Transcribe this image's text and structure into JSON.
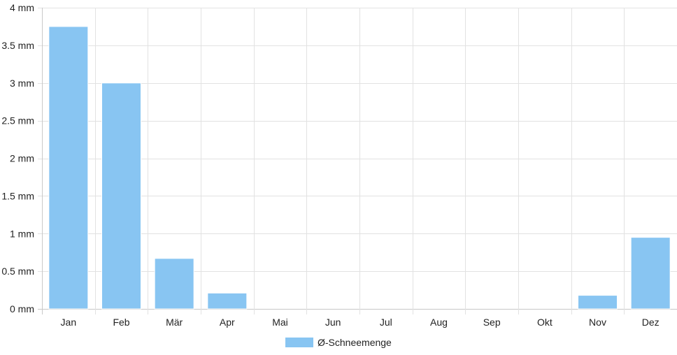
{
  "chart_data": {
    "type": "bar",
    "categories": [
      "Jan",
      "Feb",
      "Mär",
      "Apr",
      "Mai",
      "Jun",
      "Jul",
      "Aug",
      "Sep",
      "Okt",
      "Nov",
      "Dez"
    ],
    "series": [
      {
        "name": "Ø-Schneemenge",
        "values": [
          3.75,
          3.0,
          0.67,
          0.21,
          0,
          0,
          0,
          0,
          0,
          0,
          0.18,
          0.95
        ]
      }
    ],
    "ylim": [
      0,
      4
    ],
    "y_ticks": [
      "0 mm",
      "0.5 mm",
      "1 mm",
      "1.5 mm",
      "2 mm",
      "2.5 mm",
      "3 mm",
      "3.5 mm",
      "4 mm"
    ],
    "grid": true,
    "legend_position": "bottom",
    "colors": {
      "bar": "#88c5f2",
      "bar_border": "#ffffff",
      "grid": "#e2e2e2",
      "axis": "#c8c8c8"
    }
  }
}
